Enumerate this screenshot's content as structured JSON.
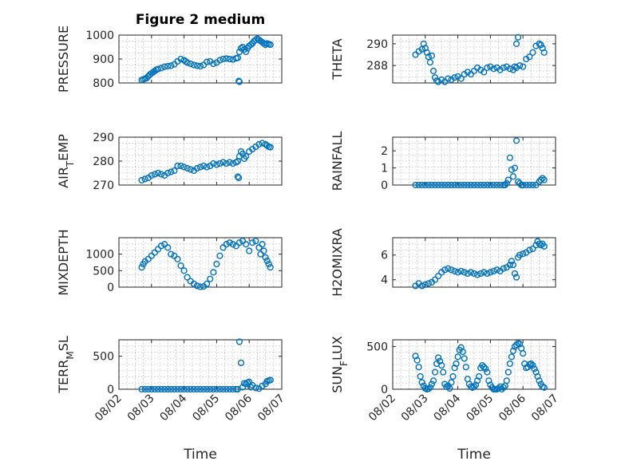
{
  "figure": {
    "title": "Figure 2 medium"
  },
  "chart_data": [
    {
      "id": "pressure",
      "type": "scatter",
      "ylabel": "PRESSURE",
      "ylim": [
        800,
        1000
      ],
      "yticks": [
        800,
        900,
        1000
      ],
      "xlim": [
        0,
        5
      ],
      "grid": true,
      "x": [
        0.7,
        0.75,
        0.8,
        0.85,
        0.9,
        0.95,
        1.0,
        1.05,
        1.1,
        1.15,
        1.2,
        1.3,
        1.4,
        1.5,
        1.6,
        1.7,
        1.8,
        1.9,
        2.0,
        2.05,
        2.1,
        2.2,
        2.3,
        2.4,
        2.5,
        2.6,
        2.7,
        2.8,
        2.9,
        3.0,
        3.1,
        3.2,
        3.3,
        3.4,
        3.5,
        3.6,
        3.65,
        3.7,
        3.75,
        3.8,
        3.85,
        3.9,
        3.95,
        4.0,
        4.05,
        4.1,
        4.15,
        4.2,
        4.25,
        4.3,
        4.35,
        4.4,
        4.45,
        4.5,
        4.55,
        4.6,
        4.65,
        3.68,
        3.7
      ],
      "y": [
        812,
        815,
        818,
        820,
        828,
        835,
        840,
        845,
        850,
        855,
        858,
        862,
        868,
        870,
        872,
        878,
        890,
        900,
        895,
        890,
        885,
        880,
        875,
        872,
        870,
        875,
        888,
        890,
        880,
        885,
        895,
        900,
        902,
        900,
        898,
        903,
        905,
        930,
        945,
        950,
        940,
        930,
        945,
        955,
        960,
        965,
        975,
        980,
        985,
        980,
        975,
        970,
        965,
        960,
        965,
        962,
        960,
        808,
        805
      ]
    },
    {
      "id": "theta",
      "type": "scatter",
      "ylabel": "THETA",
      "ylim": [
        286.4,
        290.8
      ],
      "yticks": [
        288,
        290
      ],
      "xlim": [
        0,
        5
      ],
      "grid": true,
      "x": [
        0.7,
        0.8,
        0.9,
        0.95,
        1.0,
        1.05,
        1.1,
        1.15,
        1.2,
        1.25,
        1.3,
        1.35,
        1.4,
        1.5,
        1.6,
        1.7,
        1.8,
        1.9,
        2.0,
        2.1,
        2.2,
        2.3,
        2.4,
        2.5,
        2.6,
        2.7,
        2.8,
        2.9,
        3.0,
        3.1,
        3.2,
        3.3,
        3.4,
        3.5,
        3.6,
        3.7,
        3.75,
        3.8,
        3.9,
        4.0,
        4.1,
        4.2,
        4.3,
        4.4,
        4.5,
        4.55,
        4.6,
        4.65,
        3.8,
        3.85
      ],
      "y": [
        289.0,
        289.3,
        289.5,
        290.0,
        289.6,
        289.2,
        288.8,
        288.3,
        288.9,
        287.5,
        286.9,
        286.6,
        286.5,
        286.7,
        286.5,
        286.8,
        286.7,
        286.9,
        287.0,
        286.8,
        287.2,
        287.4,
        287.2,
        287.5,
        287.8,
        287.6,
        287.4,
        287.8,
        287.9,
        287.7,
        287.8,
        287.6,
        287.8,
        287.9,
        287.7,
        287.6,
        287.9,
        287.8,
        288.0,
        287.9,
        288.6,
        288.8,
        289.2,
        289.8,
        290.0,
        289.9,
        289.6,
        289.2,
        290.0,
        290.6
      ]
    },
    {
      "id": "air_temp",
      "type": "scatter",
      "ylabel": "AIR",
      "ylabel_sub": "T",
      "ylabel_rest": "EMP",
      "ylim": [
        270,
        290
      ],
      "yticks": [
        270,
        280,
        290
      ],
      "xlim": [
        0,
        5
      ],
      "grid": true,
      "x": [
        0.7,
        0.8,
        0.9,
        1.0,
        1.1,
        1.2,
        1.3,
        1.4,
        1.5,
        1.6,
        1.7,
        1.8,
        1.9,
        2.0,
        2.1,
        2.2,
        2.3,
        2.4,
        2.5,
        2.6,
        2.7,
        2.8,
        2.9,
        3.0,
        3.1,
        3.2,
        3.3,
        3.4,
        3.5,
        3.6,
        3.65,
        3.7,
        3.75,
        3.8,
        3.85,
        3.9,
        4.0,
        4.1,
        4.2,
        4.3,
        4.4,
        4.5,
        4.55,
        4.6,
        4.65,
        3.65,
        3.68
      ],
      "y": [
        272,
        272.5,
        273,
        274,
        274.5,
        275,
        274.5,
        274,
        275,
        275.5,
        276,
        278,
        278,
        277.5,
        277,
        276.5,
        276,
        277,
        277.5,
        278,
        277.5,
        278,
        279,
        278.5,
        279,
        279.5,
        279,
        279.5,
        279,
        279.5,
        280,
        282,
        284,
        283,
        281,
        282,
        284,
        285,
        286,
        287,
        287.5,
        287,
        286.5,
        286,
        285.8,
        273.5,
        273
      ]
    },
    {
      "id": "rainfall",
      "type": "scatter",
      "ylabel": "RAINFALL",
      "ylim": [
        0,
        2.8
      ],
      "yticks": [
        0,
        1,
        2
      ],
      "xlim": [
        0,
        5
      ],
      "grid": true,
      "x": [
        0.7,
        0.8,
        0.9,
        1.0,
        1.1,
        1.2,
        1.3,
        1.4,
        1.5,
        1.6,
        1.7,
        1.8,
        1.9,
        2.0,
        2.1,
        2.2,
        2.3,
        2.4,
        2.5,
        2.6,
        2.7,
        2.8,
        2.9,
        3.0,
        3.1,
        3.2,
        3.3,
        3.4,
        3.45,
        3.5,
        3.55,
        3.6,
        3.65,
        3.7,
        3.75,
        3.8,
        3.85,
        3.9,
        3.95,
        4.0,
        4.1,
        4.2,
        4.3,
        4.4,
        4.5,
        4.55,
        4.6,
        4.65
      ],
      "y": [
        0,
        0,
        0,
        0,
        0,
        0,
        0,
        0,
        0,
        0,
        0,
        0,
        0,
        0,
        0,
        0,
        0,
        0,
        0,
        0,
        0,
        0,
        0,
        0,
        0,
        0,
        0,
        0,
        0,
        0.1,
        0.3,
        1.6,
        0.9,
        0.5,
        1.0,
        2.6,
        0.2,
        0.1,
        0,
        0,
        0,
        0,
        0,
        0,
        0.2,
        0.3,
        0.4,
        0.3
      ]
    },
    {
      "id": "mixdepth",
      "type": "scatter",
      "ylabel": "MIXDEPTH",
      "ylim": [
        0,
        1500
      ],
      "yticks": [
        0,
        500,
        1000
      ],
      "xlim": [
        0,
        5
      ],
      "grid": true,
      "x": [
        0.7,
        0.75,
        0.8,
        0.9,
        1.0,
        1.1,
        1.2,
        1.3,
        1.4,
        1.5,
        1.6,
        1.7,
        1.8,
        1.9,
        2.0,
        2.1,
        2.2,
        2.3,
        2.4,
        2.5,
        2.6,
        2.7,
        2.8,
        2.9,
        3.0,
        3.1,
        3.2,
        3.3,
        3.4,
        3.5,
        3.6,
        3.7,
        3.8,
        3.9,
        4.0,
        4.1,
        4.2,
        4.3,
        4.35,
        4.4,
        4.45,
        4.5,
        4.55,
        4.6,
        4.65
      ],
      "y": [
        600,
        700,
        780,
        850,
        950,
        1050,
        1150,
        1250,
        1300,
        1200,
        1000,
        950,
        850,
        650,
        500,
        300,
        180,
        100,
        40,
        10,
        20,
        100,
        250,
        450,
        700,
        950,
        1200,
        1300,
        1350,
        1300,
        1250,
        1350,
        1400,
        1300,
        1100,
        1350,
        1400,
        1200,
        1000,
        1300,
        1100,
        900,
        800,
        700,
        600
      ]
    },
    {
      "id": "h2omixra",
      "type": "scatter",
      "ylabel": "H2OMIXRA",
      "ylim": [
        3.4,
        7.4
      ],
      "yticks": [
        4,
        6
      ],
      "xlim": [
        0,
        5
      ],
      "grid": true,
      "x": [
        0.7,
        0.8,
        0.9,
        1.0,
        1.1,
        1.2,
        1.3,
        1.4,
        1.5,
        1.6,
        1.7,
        1.8,
        1.9,
        2.0,
        2.1,
        2.2,
        2.3,
        2.4,
        2.5,
        2.6,
        2.7,
        2.8,
        2.9,
        3.0,
        3.1,
        3.2,
        3.3,
        3.4,
        3.5,
        3.6,
        3.65,
        3.7,
        3.75,
        3.8,
        3.85,
        3.9,
        4.0,
        4.1,
        4.2,
        4.3,
        4.4,
        4.45,
        4.5,
        4.55,
        4.6,
        4.65
      ],
      "y": [
        3.5,
        3.7,
        3.5,
        3.6,
        3.7,
        3.8,
        4.0,
        4.3,
        4.6,
        4.8,
        4.9,
        4.8,
        4.7,
        4.6,
        4.7,
        4.6,
        4.5,
        4.6,
        4.5,
        4.4,
        4.5,
        4.6,
        4.5,
        4.6,
        4.7,
        4.8,
        4.7,
        4.9,
        5.0,
        5.2,
        5.5,
        5.2,
        4.5,
        4.2,
        5.8,
        6.0,
        6.1,
        6.2,
        6.4,
        6.5,
        6.8,
        7.1,
        6.9,
        6.8,
        6.9,
        6.7
      ]
    },
    {
      "id": "terr_msl",
      "type": "scatter",
      "ylabel": "TERR",
      "ylabel_sub": "M",
      "ylabel_rest": "SL",
      "ylim": [
        0,
        750
      ],
      "yticks": [
        0,
        500
      ],
      "xlim": [
        0,
        5
      ],
      "grid": true,
      "x": [
        0.7,
        0.8,
        0.9,
        1.0,
        1.1,
        1.2,
        1.3,
        1.4,
        1.5,
        1.6,
        1.7,
        1.8,
        1.9,
        2.0,
        2.1,
        2.2,
        2.3,
        2.4,
        2.5,
        2.6,
        2.7,
        2.8,
        2.9,
        3.0,
        3.1,
        3.2,
        3.3,
        3.4,
        3.5,
        3.6,
        3.65,
        3.7,
        3.75,
        3.8,
        3.85,
        3.9,
        3.95,
        4.0,
        4.05,
        4.1,
        4.2,
        4.3,
        4.4,
        4.5,
        4.55,
        4.6,
        4.65
      ],
      "y": [
        0,
        0,
        0,
        0,
        0,
        0,
        0,
        0,
        0,
        0,
        0,
        0,
        0,
        0,
        0,
        0,
        0,
        0,
        0,
        0,
        0,
        0,
        0,
        0,
        0,
        0,
        0,
        0,
        0,
        0,
        0,
        720,
        400,
        30,
        90,
        80,
        100,
        110,
        30,
        60,
        20,
        10,
        50,
        80,
        120,
        130,
        140
      ]
    },
    {
      "id": "sun_flux",
      "type": "scatter",
      "ylabel": "SUN",
      "ylabel_sub": "F",
      "ylabel_rest": "LUX",
      "ylim": [
        0,
        580
      ],
      "yticks": [
        0,
        500
      ],
      "xlim": [
        0,
        5
      ],
      "grid": true,
      "x": [
        0.7,
        0.75,
        0.8,
        0.85,
        0.9,
        0.95,
        1.0,
        1.05,
        1.1,
        1.15,
        1.2,
        1.25,
        1.3,
        1.35,
        1.4,
        1.45,
        1.5,
        1.55,
        1.6,
        1.65,
        1.7,
        1.75,
        1.8,
        1.85,
        1.9,
        1.95,
        2.0,
        2.05,
        2.1,
        2.15,
        2.2,
        2.25,
        2.3,
        2.35,
        2.4,
        2.45,
        2.5,
        2.55,
        2.6,
        2.65,
        2.7,
        2.75,
        2.8,
        2.85,
        2.9,
        2.95,
        3.0,
        3.05,
        3.1,
        3.15,
        3.2,
        3.25,
        3.3,
        3.35,
        3.4,
        3.45,
        3.5,
        3.55,
        3.6,
        3.65,
        3.7,
        3.75,
        3.8,
        3.85,
        3.9,
        3.95,
        4.0,
        4.05,
        4.1,
        4.15,
        4.2,
        4.25,
        4.3,
        4.35,
        4.4,
        4.45,
        4.5,
        4.55,
        4.6,
        4.65
      ],
      "y": [
        390,
        340,
        260,
        150,
        80,
        40,
        10,
        0,
        5,
        20,
        60,
        100,
        200,
        300,
        370,
        330,
        280,
        200,
        60,
        30,
        40,
        10,
        80,
        150,
        250,
        300,
        380,
        460,
        490,
        440,
        360,
        260,
        120,
        60,
        30,
        20,
        30,
        50,
        100,
        150,
        250,
        280,
        260,
        240,
        200,
        100,
        50,
        20,
        0,
        0,
        0,
        10,
        30,
        0,
        20,
        40,
        100,
        200,
        300,
        380,
        450,
        500,
        520,
        540,
        530,
        480,
        420,
        300,
        250,
        260,
        290,
        300,
        280,
        240,
        200,
        150,
        100,
        60,
        30,
        20
      ]
    }
  ],
  "shared_x": {
    "xlabel": "Time",
    "ticks": [
      "08/02",
      "08/03",
      "08/04",
      "08/05",
      "08/06",
      "08/07"
    ]
  }
}
